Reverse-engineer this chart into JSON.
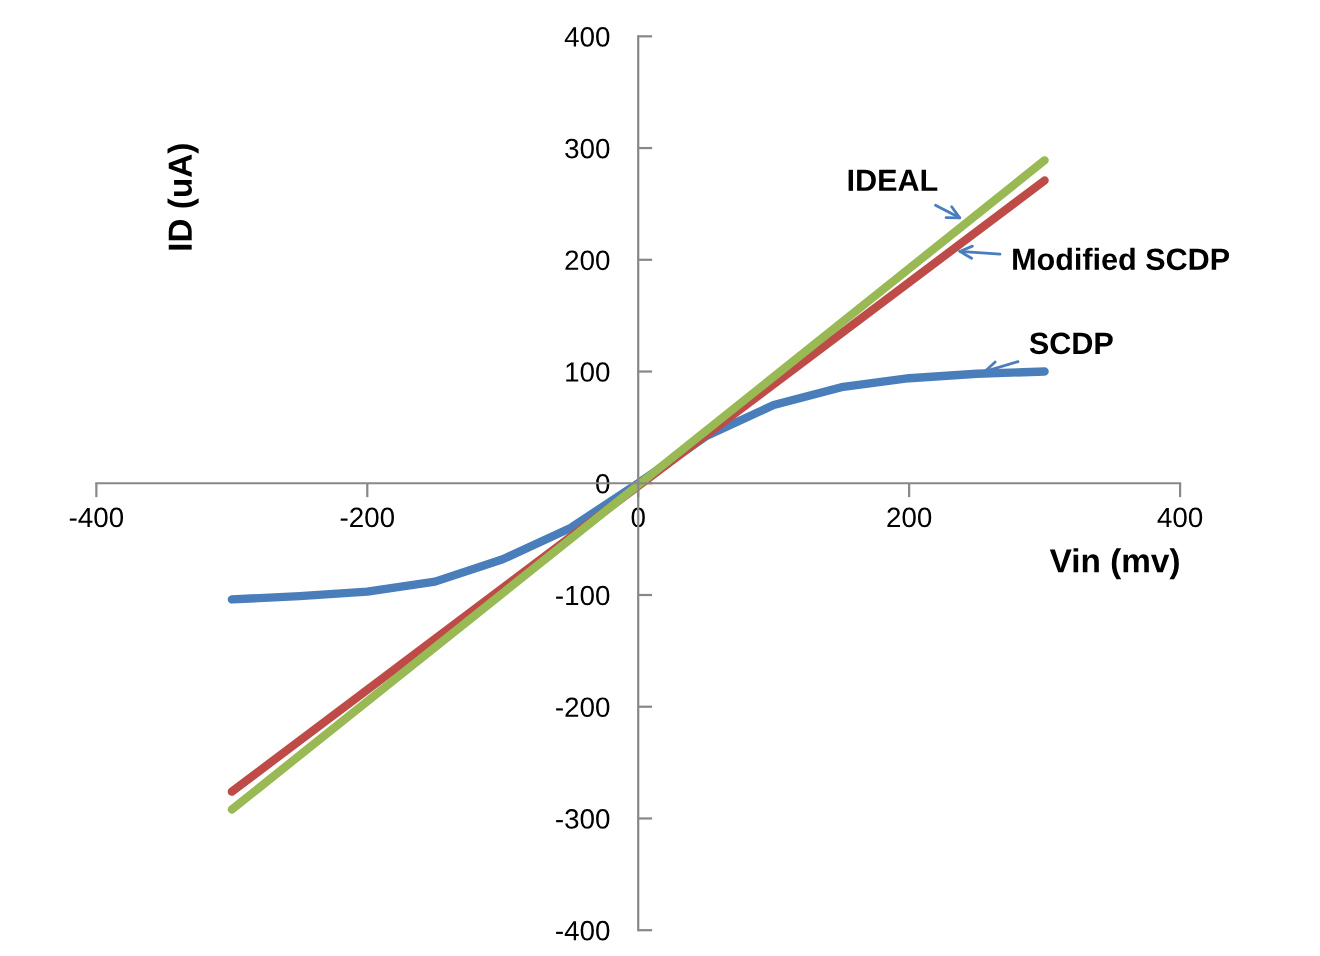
{
  "chart_data": {
    "type": "line",
    "xlabel": "Vin (mv)",
    "ylabel": "ID (uA)",
    "xlim": [
      -400,
      400
    ],
    "xticks": [
      -400,
      -200,
      0,
      200,
      400
    ],
    "ylim": [
      -400,
      400
    ],
    "yticks": [
      -400,
      -300,
      -200,
      -100,
      0,
      100,
      200,
      300,
      400
    ],
    "grid": false,
    "legend": false,
    "marker": "none",
    "line_style": "solid",
    "series": [
      {
        "color": "#4a7ebb",
        "x": [
          -300,
          -250,
          -200,
          -150,
          -100,
          -50,
          0,
          50,
          100,
          150,
          200,
          250,
          300
        ],
        "values": [
          -104,
          -101,
          -97,
          -88,
          -68,
          -40,
          0,
          42,
          70,
          86,
          94,
          98,
          100
        ]
      },
      {
        "color": "#be4b48",
        "x": [
          -300,
          300
        ],
        "values": [
          -276,
          271
        ]
      },
      {
        "color": "#98b954",
        "x": [
          -300,
          300
        ],
        "values": [
          -292,
          289
        ]
      }
    ],
    "annotations": [
      {
        "text": "IDEAL",
        "x": 243,
        "y": 234
      },
      {
        "text": "Modified SCDP",
        "x": 231,
        "y": 208
      },
      {
        "text": "SCDP",
        "x": 250,
        "y": 98
      }
    ]
  }
}
